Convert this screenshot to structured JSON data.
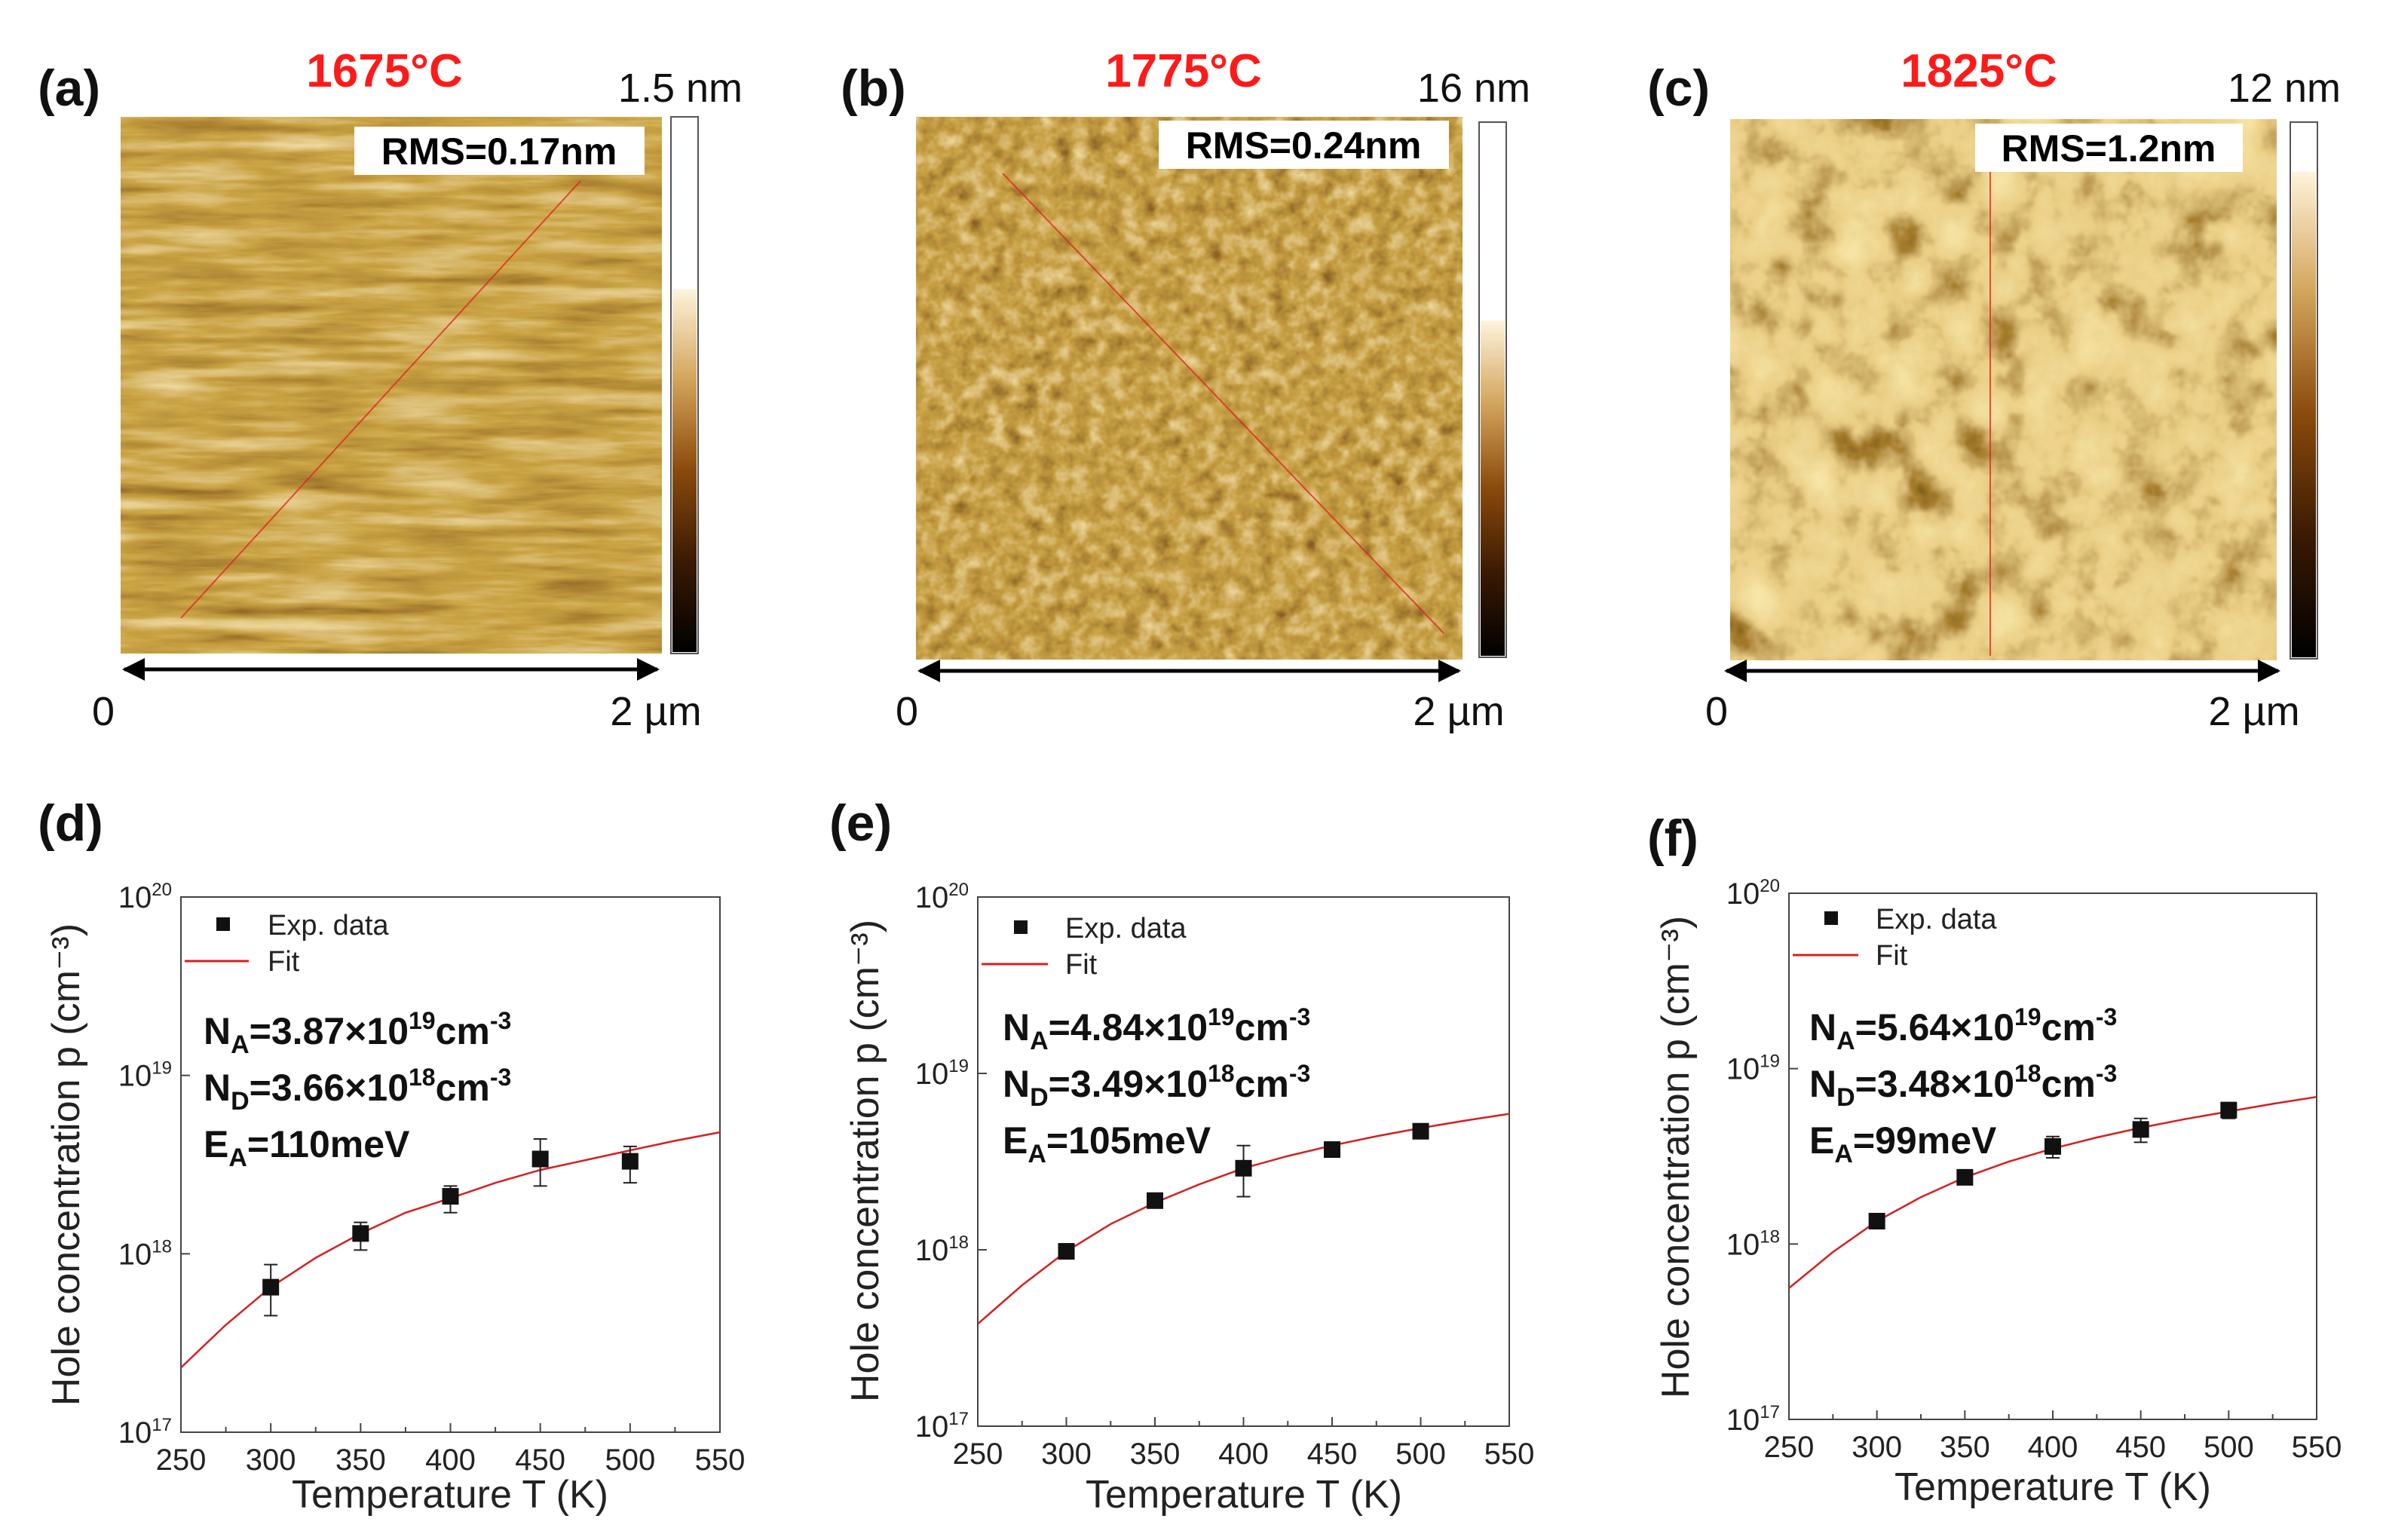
{
  "afm_panels": [
    {
      "letter": "(a)",
      "temperature": "1675°C",
      "scale_max": "1.5 nm",
      "rms": "RMS=0.17nm",
      "axis_start": "0",
      "axis_end": "2 µm",
      "texture": "stripes",
      "colorbar_break": 0.32
    },
    {
      "letter": "(b)",
      "temperature": "1775°C",
      "scale_max": "16 nm",
      "rms": "RMS=0.24nm",
      "axis_start": "0",
      "axis_end": "2 µm",
      "texture": "grainy",
      "colorbar_break": 0.37
    },
    {
      "letter": "(c)",
      "temperature": "1825°C",
      "scale_max": "12 nm",
      "rms": "RMS=1.2nm",
      "axis_start": "0",
      "axis_end": "2 µm",
      "texture": "holes",
      "colorbar_break": 0.09
    }
  ],
  "chart_data": [
    {
      "type": "scatter",
      "letter": "(d)",
      "xlabel": "Temperature T (K)",
      "ylabel": "Hole concentration p (cm⁻³)",
      "xlim": [
        250,
        550
      ],
      "ylim": [
        1e+17,
        1e+20
      ],
      "y_scale": "log",
      "x_ticks": [
        250,
        300,
        350,
        400,
        450,
        500,
        550
      ],
      "y_tick_exponents": [
        17,
        18,
        19,
        20
      ],
      "legend": {
        "data": "Exp. data",
        "fit": "Fit"
      },
      "params": {
        "na": {
          "sym": "N",
          "sub": "A",
          "val": "=3.87×10",
          "exp": "19",
          "unit": "cm",
          "unit_exp": "-3"
        },
        "nd": {
          "sym": "N",
          "sub": "D",
          "val": "=3.66×10",
          "exp": "18",
          "unit": "cm",
          "unit_exp": "-3"
        },
        "ea": {
          "sym": "E",
          "sub": "A",
          "val": "=110meV"
        }
      },
      "series": [
        {
          "name": "Exp. data",
          "x": [
            300,
            350,
            400,
            450,
            500
          ],
          "y": [
            6.5e+17,
            1.3e+18,
            2.1e+18,
            3.4e+18,
            3.3e+18
          ],
          "y_err_low": [
            4.5e+17,
            1.05e+18,
            1.7e+18,
            2.4e+18,
            2.5e+18
          ],
          "y_err_high": [
            8.7e+17,
            1.5e+18,
            2.4e+18,
            4.4e+18,
            4e+18
          ]
        },
        {
          "name": "Fit",
          "x": [
            250,
            275,
            300,
            325,
            350,
            375,
            400,
            425,
            450,
            475,
            500,
            525,
            550
          ],
          "y": [
            2.3e+17,
            4e+17,
            6.5e+17,
            9.5e+17,
            1.3e+18,
            1.7e+18,
            2.05e+18,
            2.5e+18,
            2.95e+18,
            3.35e+18,
            3.8e+18,
            4.3e+18,
            4.8e+18
          ]
        }
      ]
    },
    {
      "type": "scatter",
      "letter": "(e)",
      "xlabel": "Temperature T (K)",
      "ylabel": "Hole concentration p (cm⁻³)",
      "xlim": [
        250,
        550
      ],
      "ylim": [
        1e+17,
        1e+20
      ],
      "y_scale": "log",
      "x_ticks": [
        250,
        300,
        350,
        400,
        450,
        500,
        550
      ],
      "y_tick_exponents": [
        17,
        18,
        19,
        20
      ],
      "legend": {
        "data": "Exp. data",
        "fit": "Fit"
      },
      "params": {
        "na": {
          "sym": "N",
          "sub": "A",
          "val": "=4.84×10",
          "exp": "19",
          "unit": "cm",
          "unit_exp": "-3"
        },
        "nd": {
          "sym": "N",
          "sub": "D",
          "val": "=3.49×10",
          "exp": "18",
          "unit": "cm",
          "unit_exp": "-3"
        },
        "ea": {
          "sym": "E",
          "sub": "A",
          "val": "=105meV"
        }
      },
      "series": [
        {
          "name": "Exp. data",
          "x": [
            300,
            350,
            400,
            450,
            500
          ],
          "y": [
            9.8e+17,
            1.9e+18,
            2.9e+18,
            3.7e+18,
            4.7e+18
          ],
          "y_err_low": [
            9.3e+17,
            1.8e+18,
            2e+18,
            3.5e+18,
            4.3e+18
          ],
          "y_err_high": [
            1.03e+18,
            2e+18,
            3.9e+18,
            3.9e+18,
            5.1e+18
          ]
        },
        {
          "name": "Fit",
          "x": [
            250,
            275,
            300,
            325,
            350,
            375,
            400,
            425,
            450,
            475,
            500,
            525,
            550
          ],
          "y": [
            3.8e+17,
            6.3e+17,
            9.8e+17,
            1.4e+18,
            1.85e+18,
            2.35e+18,
            2.9e+18,
            3.4e+18,
            3.9e+18,
            4.4e+18,
            4.9e+18,
            5.4e+18,
            5.9e+18
          ]
        }
      ]
    },
    {
      "type": "scatter",
      "letter": "(f)",
      "xlabel": "Temperature T (K)",
      "ylabel": "Hole concentration p (cm⁻³)",
      "xlim": [
        250,
        550
      ],
      "ylim": [
        1e+17,
        1e+20
      ],
      "y_scale": "log",
      "x_ticks": [
        250,
        300,
        350,
        400,
        450,
        500,
        550
      ],
      "y_tick_exponents": [
        17,
        18,
        19,
        20
      ],
      "legend": {
        "data": "Exp. data",
        "fit": "Fit"
      },
      "params": {
        "na": {
          "sym": "N",
          "sub": "A",
          "val": "=5.64×10",
          "exp": "19",
          "unit": "cm",
          "unit_exp": "-3"
        },
        "nd": {
          "sym": "N",
          "sub": "D",
          "val": "=3.48×10",
          "exp": "18",
          "unit": "cm",
          "unit_exp": "-3"
        },
        "ea": {
          "sym": "E",
          "sub": "A",
          "val": "=99meV"
        }
      },
      "series": [
        {
          "name": "Exp. data",
          "x": [
            300,
            350,
            400,
            450,
            500
          ],
          "y": [
            1.35e+18,
            2.4e+18,
            3.6e+18,
            4.5e+18,
            5.8e+18
          ],
          "y_err_low": [
            1.25e+18,
            2.3e+18,
            3.1e+18,
            3.8e+18,
            5.2e+18
          ],
          "y_err_high": [
            1.45e+18,
            2.5e+18,
            4.1e+18,
            5.2e+18,
            6.4e+18
          ]
        },
        {
          "name": "Fit",
          "x": [
            250,
            275,
            300,
            325,
            350,
            375,
            400,
            425,
            450,
            475,
            500,
            525,
            550
          ],
          "y": [
            5.6e+17,
            9e+17,
            1.35e+18,
            1.85e+18,
            2.4e+18,
            2.95e+18,
            3.5e+18,
            4.05e+18,
            4.6e+18,
            5.15e+18,
            5.7e+18,
            6.3e+18,
            6.9e+18
          ]
        }
      ]
    }
  ]
}
